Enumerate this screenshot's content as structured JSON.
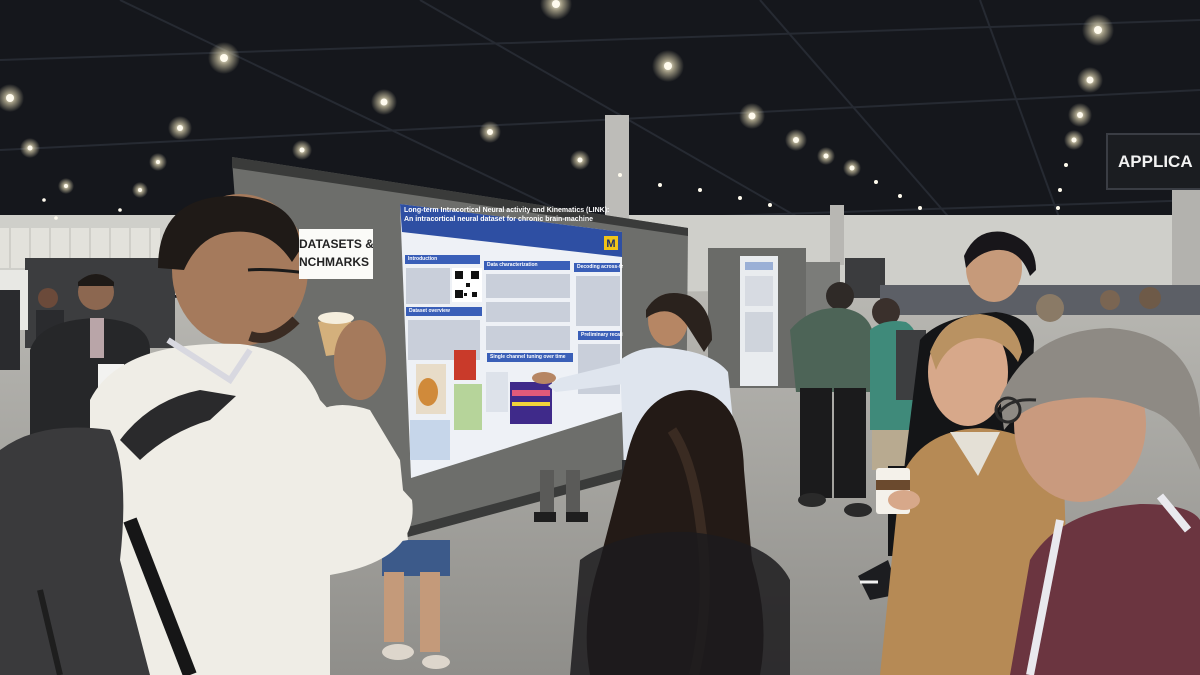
{
  "photo": {
    "subject": "Conference poster session",
    "colors": {
      "ceiling": "#15171c",
      "light": "#fff6da",
      "wall": "#cfcfca",
      "floor": "#a9a8a4",
      "poster_board": "#6d6e6b",
      "poster_paper": "#eef1f6",
      "poster_header": "#2e4fa3",
      "poster_section": "#3a5fb8"
    }
  },
  "signs": {
    "category_line1": "DATASETS &",
    "category_line2": "NCHMARKS",
    "hall": "APPLICA"
  },
  "poster": {
    "title": "Long-term Intracortical Neural activity and Kinematics (LINK): An intracortical neural dataset for chronic brain-machine interfaces, neuroscience, and machine learning",
    "sections": {
      "intro": "Introduction",
      "data_char": "Data characterization",
      "decoding": "Decoding across-the-year",
      "overview": "Dataset overview",
      "single_channel": "Single channel tuning over time",
      "preliminary": "Preliminary recalibration"
    }
  }
}
